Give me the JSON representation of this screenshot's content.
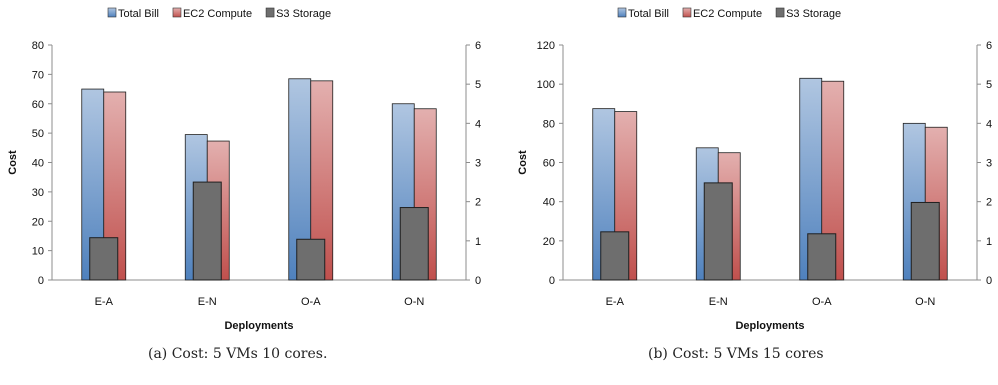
{
  "chart_data": [
    {
      "type": "bar",
      "categories": [
        "E-A",
        "E-N",
        "O-A",
        "O-N"
      ],
      "series": [
        {
          "name": "Total Bill",
          "axis": "left",
          "color": "#4f81bd",
          "values": [
            65,
            49.5,
            68.5,
            60
          ]
        },
        {
          "name": "EC2 Compute",
          "axis": "left",
          "color": "#c0504d",
          "values": [
            64,
            47.3,
            67.8,
            58.3
          ]
        },
        {
          "name": "S3 Storage",
          "axis": "right",
          "color": "#6e6e6e",
          "values": [
            1.08,
            2.5,
            1.04,
            1.85
          ]
        }
      ],
      "xlabel": "Deployments",
      "ylabel": "Cost",
      "ylim": [
        0,
        80
      ],
      "yticks": [
        0,
        10,
        20,
        30,
        40,
        50,
        60,
        70,
        80
      ],
      "y2lim": [
        0,
        6
      ],
      "y2ticks": [
        0,
        1,
        2,
        3,
        4,
        5,
        6
      ],
      "legend": "top",
      "grid": false,
      "caption": "(a)  Cost:  5 VMs 10 cores."
    },
    {
      "type": "bar",
      "categories": [
        "E-A",
        "E-N",
        "O-A",
        "O-N"
      ],
      "series": [
        {
          "name": "Total Bill",
          "axis": "left",
          "color": "#4f81bd",
          "values": [
            87.5,
            67.5,
            103,
            80
          ]
        },
        {
          "name": "EC2 Compute",
          "axis": "left",
          "color": "#c0504d",
          "values": [
            86,
            65,
            101.5,
            78
          ]
        },
        {
          "name": "S3 Storage",
          "axis": "right",
          "color": "#6e6e6e",
          "values": [
            1.23,
            2.48,
            1.18,
            1.98
          ]
        }
      ],
      "xlabel": "Deployments",
      "ylabel": "Cost",
      "ylim": [
        0,
        120
      ],
      "yticks": [
        0,
        20,
        40,
        60,
        80,
        100,
        120
      ],
      "y2lim": [
        0,
        6
      ],
      "y2ticks": [
        0,
        1,
        2,
        3,
        4,
        5,
        6
      ],
      "legend": "top",
      "grid": false,
      "caption": "(b)  Cost:  5 VMs 15 cores"
    }
  ]
}
